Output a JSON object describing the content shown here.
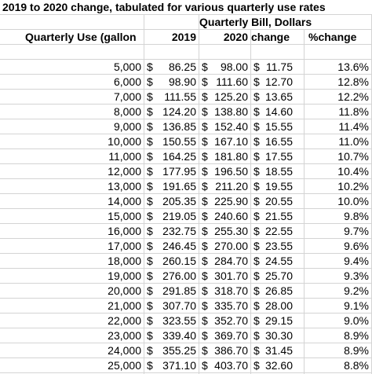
{
  "title": "2019 to 2020 change, tabulated for various quarterly use rates",
  "subheader": "Quarterly Bill, Dollars",
  "columns": [
    "Quarterly Use (gallon",
    "2019",
    "2020",
    "change",
    "%change"
  ],
  "rows": [
    [
      "5,000",
      "$",
      "86.25",
      "$",
      "98.00",
      "$",
      "11.75",
      "13.6%"
    ],
    [
      "6,000",
      "$",
      "98.90",
      "$",
      "111.60",
      "$",
      "12.70",
      "12.8%"
    ],
    [
      "7,000",
      "$",
      "111.55",
      "$",
      "125.20",
      "$",
      "13.65",
      "12.2%"
    ],
    [
      "8,000",
      "$",
      "124.20",
      "$",
      "138.80",
      "$",
      "14.60",
      "11.8%"
    ],
    [
      "9,000",
      "$",
      "136.85",
      "$",
      "152.40",
      "$",
      "15.55",
      "11.4%"
    ],
    [
      "10,000",
      "$",
      "150.55",
      "$",
      "167.10",
      "$",
      "16.55",
      "11.0%"
    ],
    [
      "11,000",
      "$",
      "164.25",
      "$",
      "181.80",
      "$",
      "17.55",
      "10.7%"
    ],
    [
      "12,000",
      "$",
      "177.95",
      "$",
      "196.50",
      "$",
      "18.55",
      "10.4%"
    ],
    [
      "13,000",
      "$",
      "191.65",
      "$",
      "211.20",
      "$",
      "19.55",
      "10.2%"
    ],
    [
      "14,000",
      "$",
      "205.35",
      "$",
      "225.90",
      "$",
      "20.55",
      "10.0%"
    ],
    [
      "15,000",
      "$",
      "219.05",
      "$",
      "240.60",
      "$",
      "21.55",
      "9.8%"
    ],
    [
      "16,000",
      "$",
      "232.75",
      "$",
      "255.30",
      "$",
      "22.55",
      "9.7%"
    ],
    [
      "17,000",
      "$",
      "246.45",
      "$",
      "270.00",
      "$",
      "23.55",
      "9.6%"
    ],
    [
      "18,000",
      "$",
      "260.15",
      "$",
      "284.70",
      "$",
      "24.55",
      "9.4%"
    ],
    [
      "19,000",
      "$",
      "276.00",
      "$",
      "301.70",
      "$",
      "25.70",
      "9.3%"
    ],
    [
      "20,000",
      "$",
      "291.85",
      "$",
      "318.70",
      "$",
      "26.85",
      "9.2%"
    ],
    [
      "21,000",
      "$",
      "307.70",
      "$",
      "335.70",
      "$",
      "28.00",
      "9.1%"
    ],
    [
      "22,000",
      "$",
      "323.55",
      "$",
      "352.70",
      "$",
      "29.15",
      "9.0%"
    ],
    [
      "23,000",
      "$",
      "339.40",
      "$",
      "369.70",
      "$",
      "30.30",
      "8.9%"
    ],
    [
      "24,000",
      "$",
      "355.25",
      "$",
      "386.70",
      "$",
      "31.45",
      "8.9%"
    ],
    [
      "25,000",
      "$",
      "371.10",
      "$",
      "403.70",
      "$",
      "32.60",
      "8.8%"
    ]
  ]
}
